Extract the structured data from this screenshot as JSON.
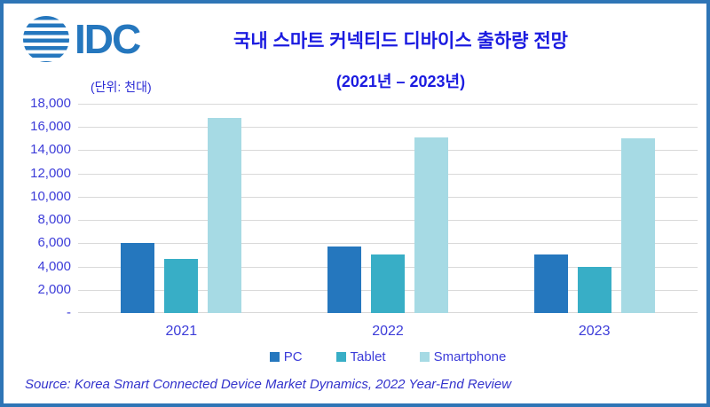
{
  "header": {
    "logo_text": "IDC",
    "title": "국내 스마트 커넥티드 디바이스 출하량 전망",
    "subtitle": "(2021년 – 2023년)",
    "unit_label": "(단위: 천대)"
  },
  "source_note": "Source: Korea Smart Connected Device Market Dynamics, 2022 Year-End Review",
  "colors": {
    "frame_border": "#2E75B6",
    "title_text": "#1B1BE0",
    "axis_text": "#3C3CD9",
    "gridline": "#D9D9D9",
    "logo_blue": "#2577BE"
  },
  "chart_data": {
    "type": "bar",
    "title": "국내 스마트 커넥티드 디바이스 출하량 전망 (2021년 – 2023년)",
    "unit": "천대",
    "categories": [
      "2021",
      "2022",
      "2023"
    ],
    "series": [
      {
        "name": "PC",
        "color": "#2577BE",
        "values": [
          6000,
          5700,
          5000
        ]
      },
      {
        "name": "Tablet",
        "color": "#38AEC6",
        "values": [
          4650,
          5000,
          4000
        ]
      },
      {
        "name": "Smartphone",
        "color": "#A6DAE4",
        "values": [
          16800,
          15100,
          15000
        ]
      }
    ],
    "xlabel": "",
    "ylabel": "",
    "ylim": [
      0,
      18000
    ],
    "ytick_step": 2000,
    "ytick_labels_top_to_bottom": [
      "18,000",
      "16,000",
      "14,000",
      "12,000",
      "10,000",
      "8,000",
      "6,000",
      "4,000",
      "2,000",
      "-"
    ],
    "grid": true,
    "legend_position": "bottom"
  }
}
